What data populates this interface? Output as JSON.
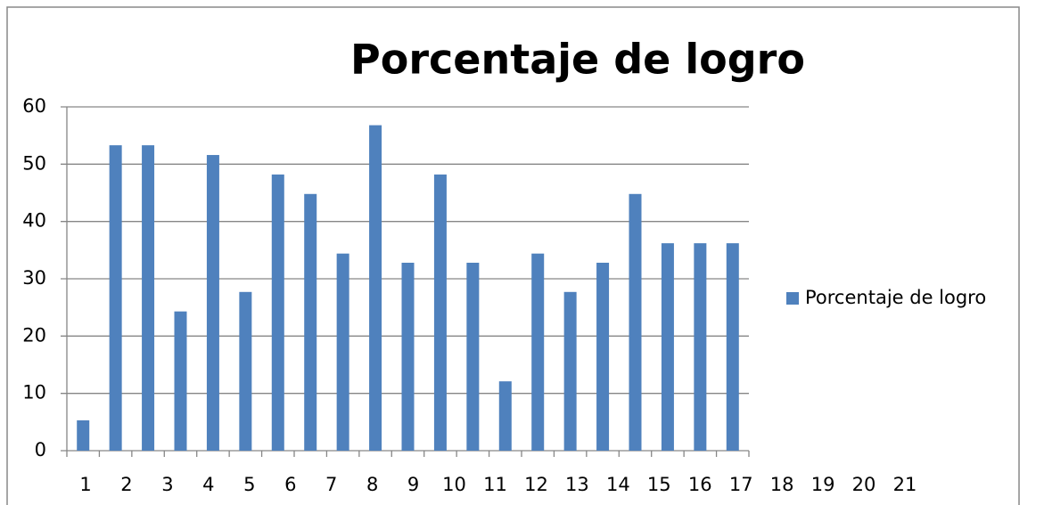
{
  "chart_data": {
    "type": "bar",
    "title": "Porcentaje de logro",
    "categories": [
      1,
      2,
      3,
      4,
      5,
      6,
      7,
      8,
      9,
      10,
      11,
      12,
      13,
      14,
      15,
      16,
      17,
      18,
      19,
      20,
      21
    ],
    "series": [
      {
        "name": "Porcentaje de logro",
        "color": "#4f81bd",
        "values": [
          5.3,
          53.3,
          53.3,
          24.3,
          51.6,
          27.7,
          48.2,
          44.8,
          34.4,
          56.8,
          32.8,
          48.2,
          32.8,
          12.1,
          34.4,
          27.7,
          32.8,
          44.8,
          36.2,
          36.2,
          36.2
        ]
      }
    ],
    "ylim": [
      0,
      60
    ],
    "yticks": [
      0,
      10,
      20,
      30,
      40,
      50,
      60
    ],
    "grid": true,
    "legend": "right"
  }
}
